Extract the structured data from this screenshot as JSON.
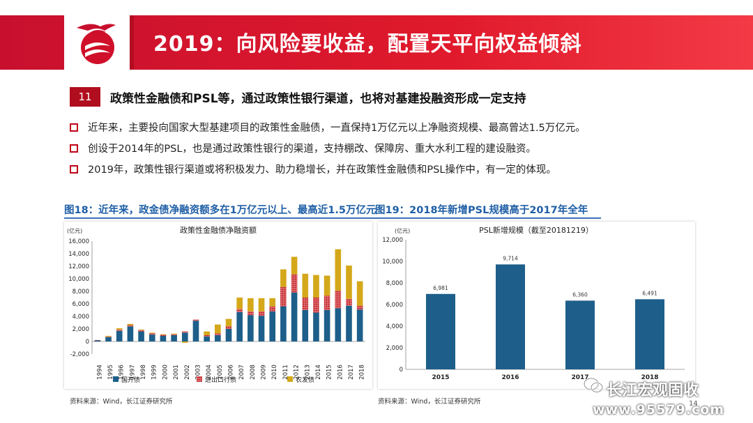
{
  "header": {
    "title": "2019：向风险要收益，配置天平向权益倾斜",
    "bar_color": "#e01a2c",
    "logo_icon": "phoenix-logo-icon"
  },
  "section": {
    "number": "11",
    "title": "政策性金融债和PSL等，通过政策性银行渠道，也将对基建投融资形成一定支持"
  },
  "bullets": [
    "近年来，主要投向国家大型基建项目的政策性金融债，一直保持1万亿元以上净融资规模、最高曾达1.5万亿元。",
    "创设于2014年的PSL，也是通过政策性银行的渠道，支持棚改、保障房、重大水利工程的建设融资。",
    "2019年，政策性银行渠道或将积极发力、助力稳增长，并在政策性金融债和PSL操作中，有一定的体现。"
  ],
  "figures": {
    "fig18_title": "图18：近年来，政金债净融资额多在1万亿元以上、最高近1.5万亿元",
    "fig19_title": "图19：2018年新增PSL规模高于2017年全年"
  },
  "sources": {
    "left": "资料来源：Wind，长江证券研究所",
    "right": "资料来源：Wind，长江证券研究所"
  },
  "watermark": {
    "name": "长江宏观固收",
    "url": "www.95579.com",
    "icon": "wechat-icon"
  },
  "page_number": "14",
  "chart_data": [
    {
      "type": "bar",
      "stacked": true,
      "title": "政策性金融债净融资额",
      "ylabel": "(亿元)",
      "ylim": [
        -2000,
        16000
      ],
      "yticks": [
        -2000,
        0,
        2000,
        4000,
        6000,
        8000,
        10000,
        12000,
        14000,
        16000
      ],
      "ytick_labels": [
        "-2,000",
        "0",
        "2,000",
        "4,000",
        "6,000",
        "8,000",
        "10,000",
        "12,000",
        "14,000",
        "16,000"
      ],
      "categories": [
        "1994",
        "1995",
        "1996",
        "1997",
        "1998",
        "1999",
        "2000",
        "2001",
        "2002",
        "2003",
        "2004",
        "2005",
        "2006",
        "2007",
        "2008",
        "2009",
        "2010",
        "2011",
        "2012",
        "2013",
        "2014",
        "2015",
        "2016",
        "2017",
        "2018"
      ],
      "series": [
        {
          "name": "国开债",
          "color": "#1d5f8a",
          "values": [
            200,
            700,
            1700,
            2400,
            1600,
            1100,
            900,
            1000,
            1400,
            3300,
            800,
            1000,
            2000,
            4700,
            4200,
            4100,
            4800,
            5600,
            7800,
            5000,
            4600,
            5000,
            5300,
            5700,
            5100
          ]
        },
        {
          "name": "进出口行债",
          "color": "#c00018",
          "values": [
            30,
            100,
            200,
            200,
            200,
            200,
            150,
            150,
            200,
            200,
            200,
            300,
            400,
            500,
            600,
            700,
            800,
            3100,
            2900,
            2000,
            2400,
            2300,
            2800,
            1100,
            600
          ]
        },
        {
          "name": "农发债",
          "color": "#d4a81a",
          "values": [
            0,
            100,
            200,
            200,
            100,
            100,
            100,
            100,
            -200,
            0,
            600,
            1400,
            1200,
            1800,
            2100,
            2100,
            1300,
            2800,
            2800,
            3800,
            3600,
            3200,
            6600,
            5300,
            3900
          ]
        }
      ],
      "legend_placement": "bottom"
    },
    {
      "type": "bar",
      "title": "PSL新增规模（截至20181219）",
      "ylabel": "(亿元)",
      "ylim": [
        0,
        12000
      ],
      "yticks": [
        0,
        2000,
        4000,
        6000,
        8000,
        10000,
        12000
      ],
      "ytick_labels": [
        "0",
        "2,000",
        "4,000",
        "6,000",
        "8,000",
        "10,000",
        "12,000"
      ],
      "categories": [
        "2015",
        "2016",
        "2017",
        "2018"
      ],
      "values": [
        6981,
        9714,
        6360,
        6491
      ],
      "value_labels": [
        "6,981",
        "9,714",
        "6,360",
        "6,491"
      ],
      "color": "#1d5f8a"
    }
  ]
}
